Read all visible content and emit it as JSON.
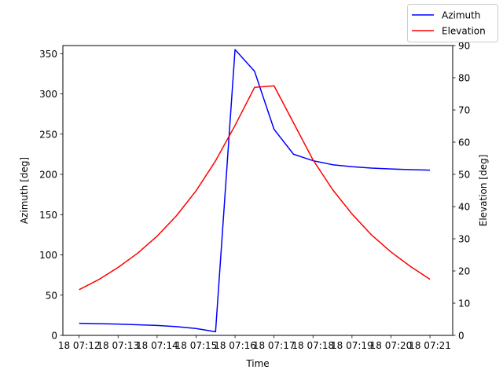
{
  "chart_data": {
    "type": "line",
    "xlabel": "Time",
    "x_ticks": [
      "18 07:12",
      "18 07:13",
      "18 07:14",
      "18 07:15",
      "18 07:16",
      "18 07:17",
      "18 07:18",
      "18 07:19",
      "18 07:20",
      "18 07:21"
    ],
    "xlim": [
      "07:11:35",
      "07:21:35"
    ],
    "grid": false,
    "legend_position": "top-right",
    "axes": {
      "left": {
        "label": "Azimuth [deg]",
        "ylim": [
          0,
          360
        ],
        "ticks": [
          0,
          50,
          100,
          150,
          200,
          250,
          300,
          350
        ]
      },
      "right": {
        "label": "Elevation [deg]",
        "ylim": [
          0,
          90
        ],
        "ticks": [
          0,
          10,
          20,
          30,
          40,
          50,
          60,
          70,
          80,
          90
        ]
      }
    },
    "series": [
      {
        "name": "Azimuth",
        "axis": "left",
        "color": "#0000ff",
        "x": [
          "07:12:00",
          "07:12:30",
          "07:13:00",
          "07:13:30",
          "07:14:00",
          "07:14:30",
          "07:15:00",
          "07:15:30",
          "07:16:00",
          "07:16:30",
          "07:17:00",
          "07:17:30",
          "07:18:00",
          "07:18:30",
          "07:19:00",
          "07:19:30",
          "07:20:00",
          "07:20:30",
          "07:21:00"
        ],
        "values": [
          15,
          14.5,
          14,
          13.2,
          12.3,
          10.8,
          8.5,
          4.5,
          355,
          328,
          256,
          225,
          217,
          212,
          209.5,
          207.8,
          206.7,
          205.8,
          205.2
        ]
      },
      {
        "name": "Elevation",
        "axis": "right",
        "color": "#ff0000",
        "x": [
          "07:12:00",
          "07:12:30",
          "07:13:00",
          "07:13:30",
          "07:14:00",
          "07:14:30",
          "07:15:00",
          "07:15:30",
          "07:16:00",
          "07:16:30",
          "07:17:00",
          "07:17:30",
          "07:18:00",
          "07:18:30",
          "07:19:00",
          "07:19:30",
          "07:20:00",
          "07:20:30",
          "07:21:00"
        ],
        "values": [
          14.2,
          17.3,
          21.1,
          25.5,
          30.8,
          37.2,
          44.9,
          54.2,
          65.2,
          77,
          77.5,
          66,
          54.5,
          45.3,
          37.7,
          31.2,
          25.9,
          21.4,
          17.4
        ]
      }
    ]
  }
}
